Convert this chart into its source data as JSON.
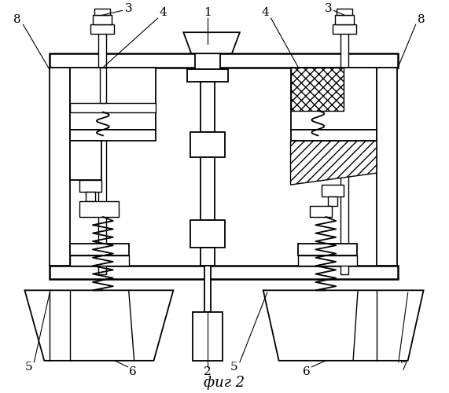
{
  "bg_color": "#ffffff",
  "caption": "фиг 2",
  "figsize": [
    5.71,
    5.0
  ],
  "dpi": 100
}
